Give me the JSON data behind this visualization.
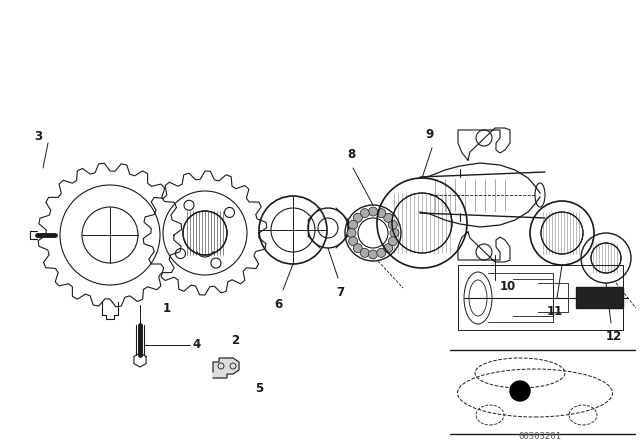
{
  "bg_color": "#ffffff",
  "line_color": "#1a1a1a",
  "fig_width": 6.4,
  "fig_height": 4.48,
  "dpi": 100,
  "watermark": "00303201"
}
